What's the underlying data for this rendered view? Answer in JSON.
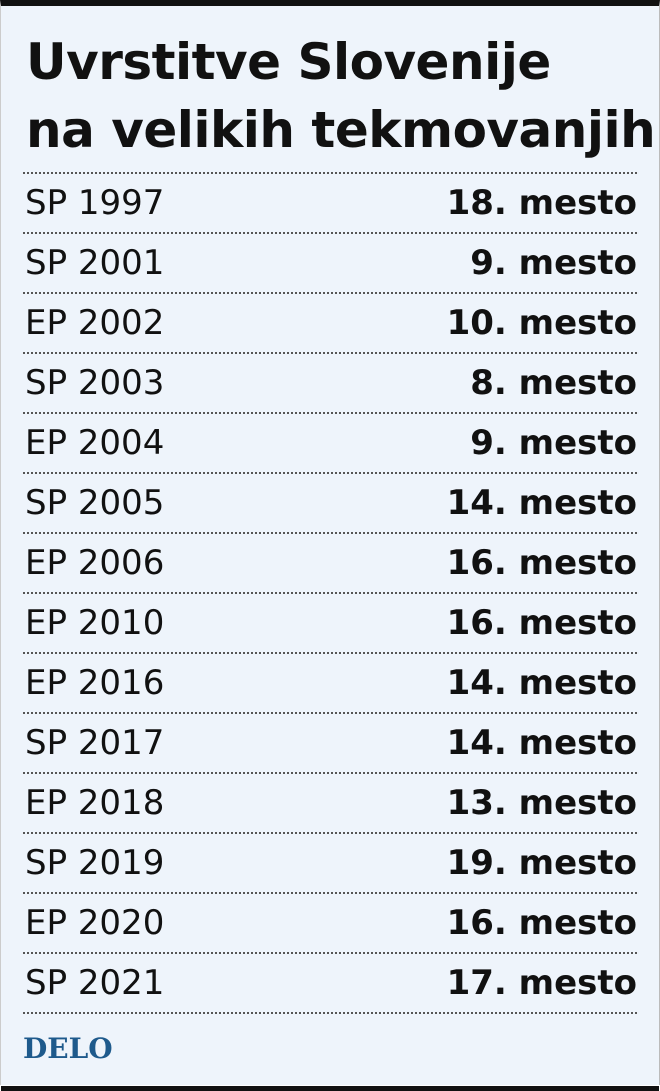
{
  "header": {
    "title_lines": [
      "Uvrstitve Slovenije",
      "na velikih tekmovanjih"
    ]
  },
  "table": {
    "rows": [
      [
        "SP 1997",
        "18. mesto"
      ],
      [
        "SP 2001",
        "9. mesto"
      ],
      [
        "EP 2002",
        "10. mesto"
      ],
      [
        "SP 2003",
        "8. mesto"
      ],
      [
        "EP 2004",
        "9. mesto"
      ],
      [
        "SP 2005",
        "14. mesto"
      ],
      [
        "EP 2006",
        "16. mesto"
      ],
      [
        "EP 2010",
        "16. mesto"
      ],
      [
        "EP 2016",
        "14. mesto"
      ],
      [
        "SP 2017",
        "14. mesto"
      ],
      [
        "EP 2018",
        "13. mesto"
      ],
      [
        "SP 2019",
        "19. mesto"
      ],
      [
        "EP 2020",
        "16. mesto"
      ],
      [
        "SP 2021",
        "17. mesto"
      ]
    ]
  },
  "footer": {
    "logo": "DELO"
  }
}
